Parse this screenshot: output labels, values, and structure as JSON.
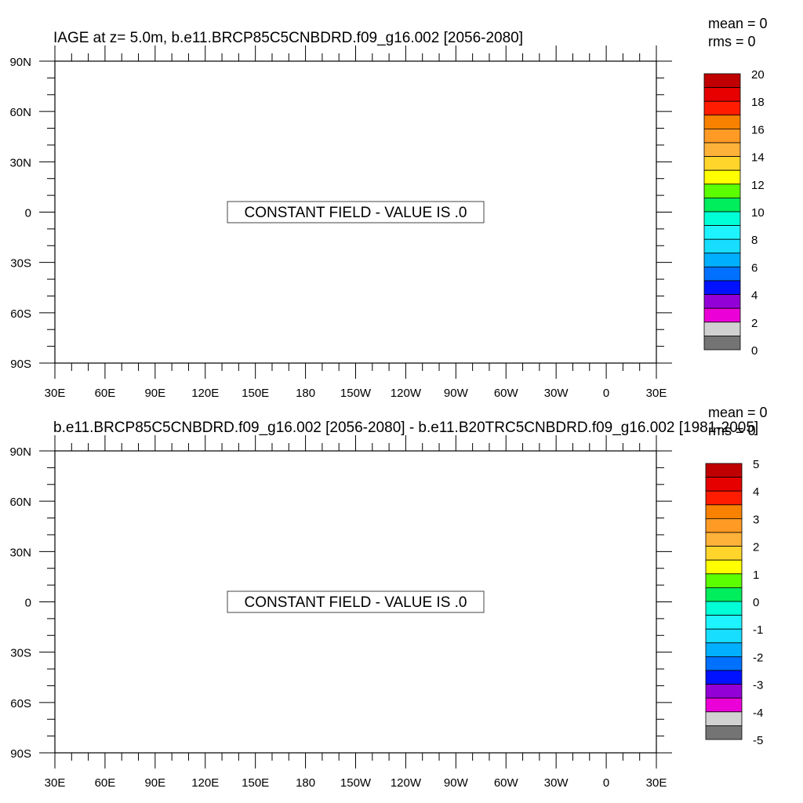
{
  "chart_data": [
    {
      "type": "heatmap",
      "title": "IAGE at z=   5.0m, b.e11.BRCP85C5CNBDRD.f09_g16.002 [2056-2080]",
      "stats": {
        "mean": "mean = 0",
        "rms": "rms = 0"
      },
      "message": "CONSTANT FIELD - VALUE IS .0",
      "lat_labels": [
        "90N",
        "60N",
        "30N",
        "0",
        "30S",
        "60S",
        "90S"
      ],
      "lon_labels": [
        "30E",
        "60E",
        "90E",
        "120E",
        "150E",
        "180",
        "150W",
        "120W",
        "90W",
        "60W",
        "30W",
        "0",
        "30E"
      ],
      "colorbar": {
        "labels": [
          "20",
          "18",
          "16",
          "14",
          "12",
          "10",
          "8",
          "6",
          "4",
          "2",
          "0"
        ],
        "colors": [
          "#c00000",
          "#e60000",
          "#ff1c00",
          "#f88200",
          "#ff9b24",
          "#ffb23a",
          "#ffd52c",
          "#ffff00",
          "#5cff00",
          "#00ed5c",
          "#00ffd6",
          "#1ef4ff",
          "#17ddff",
          "#00b0ff",
          "#0070ff",
          "#0012ff",
          "#9200d7",
          "#ec00d8",
          "#d1d1d1",
          "#747474"
        ]
      }
    },
    {
      "type": "heatmap",
      "title": "b.e11.BRCP85C5CNBDRD.f09_g16.002 [2056-2080] - b.e11.B20TRC5CNBDRD.f09_g16.002 [1981-2005]",
      "stats": {
        "mean": "mean = 0",
        "rms": "rms = 0"
      },
      "message": "CONSTANT FIELD - VALUE IS .0",
      "lat_labels": [
        "90N",
        "60N",
        "30N",
        "0",
        "30S",
        "60S",
        "90S"
      ],
      "lon_labels": [
        "30E",
        "60E",
        "90E",
        "120E",
        "150E",
        "180",
        "150W",
        "120W",
        "90W",
        "60W",
        "30W",
        "0",
        "30E"
      ],
      "colorbar": {
        "labels": [
          "5",
          "4",
          "3",
          "2",
          "1",
          "0",
          "-1",
          "-2",
          "-3",
          "-4",
          "-5"
        ],
        "colors": [
          "#c00000",
          "#e60000",
          "#ff1c00",
          "#f88200",
          "#ff9b24",
          "#ffb23a",
          "#ffd52c",
          "#ffff00",
          "#5cff00",
          "#00ed5c",
          "#00ffd6",
          "#1ef4ff",
          "#17ddff",
          "#00b0ff",
          "#0070ff",
          "#0012ff",
          "#9200d7",
          "#ec00d8",
          "#d1d1d1",
          "#747474"
        ]
      }
    }
  ]
}
